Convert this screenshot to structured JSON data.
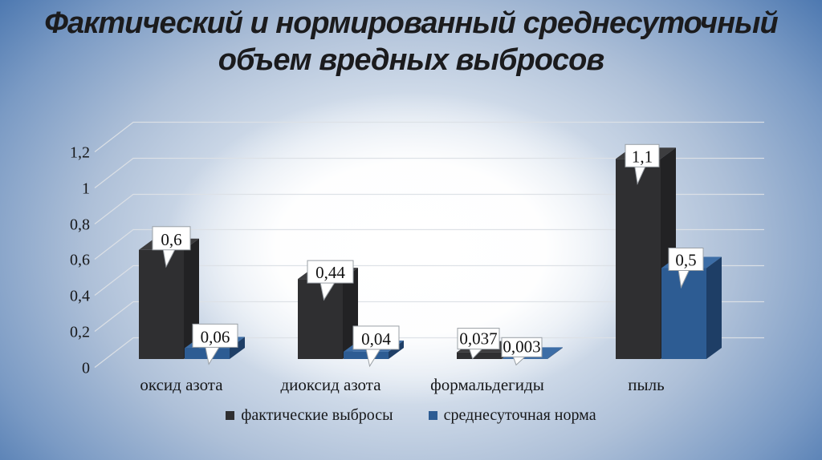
{
  "slide": {
    "title": "Фактический и нормированный среднесуточный объем вредных выбросов",
    "title_lines": [
      "Фактический и нормированный среднесуточный",
      "объем вредных выбросов"
    ]
  },
  "chart_data": {
    "type": "bar",
    "style": "3d-clustered-column",
    "title": "Фактический и нормированный среднесуточный объем вредных выбросов",
    "categories": [
      "оксид азота",
      "диоксид азота",
      "формальдегиды",
      "пыль"
    ],
    "series": [
      {
        "name": "фактические выбросы",
        "values": [
          0.6,
          0.44,
          0.037,
          1.1
        ],
        "value_labels": [
          "0,6",
          "0,44",
          "0,037",
          "1,1"
        ],
        "color": {
          "front": "#2f2f31",
          "top": "#3d3d3f",
          "side": "#222224"
        }
      },
      {
        "name": "среднесуточная норма",
        "values": [
          0.06,
          0.04,
          0.003,
          0.5
        ],
        "value_labels": [
          "0,06",
          "0,04",
          "0,003",
          "0,5"
        ],
        "color": {
          "front": "#2d5c93",
          "top": "#3c6da6",
          "side": "#1e3e66"
        }
      }
    ],
    "y_axis": {
      "min": 0,
      "max": 1.2,
      "tick_values": [
        0,
        0.2,
        0.4,
        0.6,
        0.8,
        1,
        1.2
      ],
      "tick_labels": [
        "0",
        "0,2",
        "0,4",
        "0,6",
        "0,8",
        "1",
        "1,2"
      ],
      "grid": true
    },
    "legend": {
      "position": "bottom",
      "entries": [
        "фактические выбросы",
        "среднесуточная норма"
      ]
    },
    "colors": {
      "gridline": "#dce0e6",
      "text": "#17181a",
      "callout_fill": "#ffffff",
      "callout_border": "#9aa0a6"
    }
  }
}
